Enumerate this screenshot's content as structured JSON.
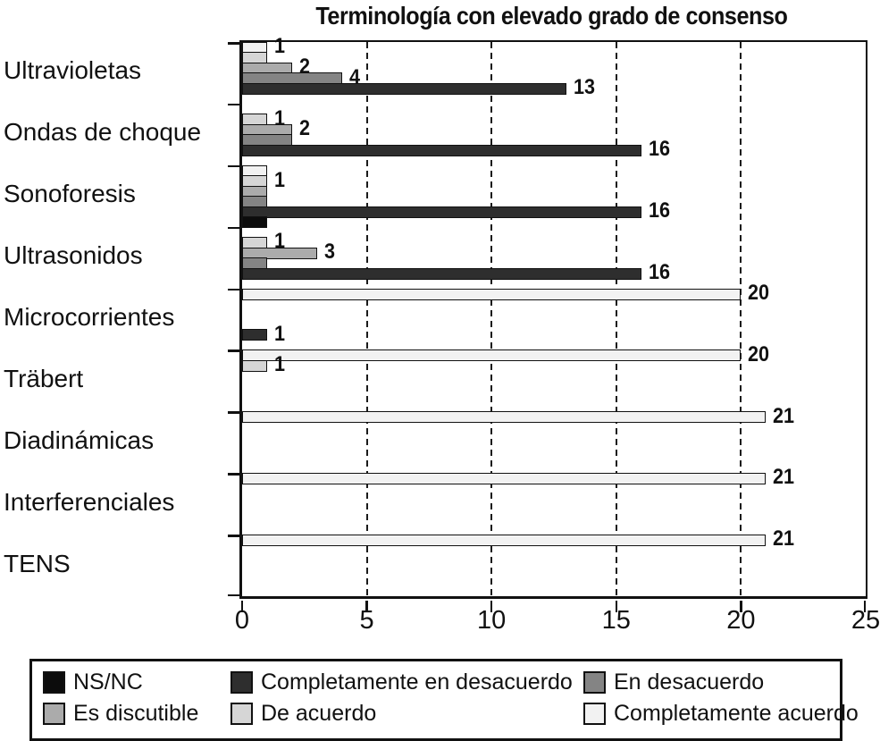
{
  "chart_data": {
    "type": "bar",
    "orientation": "horizontal",
    "title": "Terminología con elevado grado de consenso",
    "categories": [
      "Ultravioletas",
      "Ondas de choque",
      "Sonoforesis",
      "Ultrasonidos",
      "Microcorrientes",
      "Träbert",
      "Diadinámicas",
      "Interferenciales",
      "TENS"
    ],
    "xlim": [
      0,
      25
    ],
    "x_tick_labels": [
      "0",
      "5",
      "10",
      "15",
      "20",
      "25"
    ],
    "x_tick_values": [
      0,
      5,
      10,
      15,
      20,
      25
    ],
    "gridlines_at": [
      5,
      10,
      15,
      20
    ],
    "grid_style": "dashed",
    "series": [
      {
        "name": "Completamente acuerdo",
        "color": "#f2f2f2",
        "values": [
          1,
          0,
          1,
          0,
          20,
          20,
          21,
          21,
          21
        ]
      },
      {
        "name": "De acuerdo",
        "color": "#d6d6d6",
        "values": [
          1,
          1,
          1,
          1,
          0,
          1,
          0,
          0,
          0
        ]
      },
      {
        "name": "Es discutible",
        "color": "#ababab",
        "values": [
          2,
          2,
          1,
          3,
          0,
          0,
          0,
          0,
          0
        ]
      },
      {
        "name": "En desacuerdo",
        "color": "#848484",
        "values": [
          4,
          2,
          1,
          1,
          0,
          0,
          0,
          0,
          0
        ]
      },
      {
        "name": "Completamente en desacuerdo",
        "color": "#2e2e2e",
        "values": [
          13,
          16,
          16,
          16,
          1,
          0,
          0,
          0,
          0
        ]
      },
      {
        "name": "NS/NC",
        "color": "#0c0c0c",
        "values": [
          0,
          0,
          1,
          0,
          0,
          0,
          0,
          0,
          0
        ]
      }
    ],
    "value_labels": [
      {
        "c": 0,
        "s": 0,
        "t": "1"
      },
      {
        "c": 0,
        "s": 2,
        "t": "2"
      },
      {
        "c": 0,
        "s": 3,
        "t": "4"
      },
      {
        "c": 0,
        "s": 4,
        "t": "13"
      },
      {
        "c": 1,
        "s": 1,
        "t": "1"
      },
      {
        "c": 1,
        "s": 2,
        "t": "2"
      },
      {
        "c": 1,
        "s": 4,
        "t": "16"
      },
      {
        "c": 2,
        "s": 1,
        "t": "1"
      },
      {
        "c": 2,
        "s": 4,
        "t": "16"
      },
      {
        "c": 3,
        "s": 1,
        "t": "1"
      },
      {
        "c": 3,
        "s": 2,
        "t": "3"
      },
      {
        "c": 3,
        "s": 4,
        "t": "16"
      },
      {
        "c": 4,
        "s": 0,
        "t": "20"
      },
      {
        "c": 4,
        "s": 4,
        "t": "1"
      },
      {
        "c": 5,
        "s": 0,
        "t": "20"
      },
      {
        "c": 5,
        "s": 1,
        "t": "1"
      },
      {
        "c": 6,
        "s": 0,
        "t": "21"
      },
      {
        "c": 7,
        "s": 0,
        "t": "21"
      },
      {
        "c": 8,
        "s": 0,
        "t": "21"
      }
    ],
    "legend_position": "bottom",
    "legend_items": [
      {
        "label": "NS/NC",
        "color": "#0c0c0c"
      },
      {
        "label": "Completamente en desacuerdo",
        "color": "#2e2e2e"
      },
      {
        "label": "En desacuerdo",
        "color": "#848484"
      },
      {
        "label": "Es discutible",
        "color": "#ababab"
      },
      {
        "label": "De acuerdo",
        "color": "#d6d6d6"
      },
      {
        "label": "Completamente acuerdo",
        "color": "#f2f2f2"
      }
    ]
  }
}
